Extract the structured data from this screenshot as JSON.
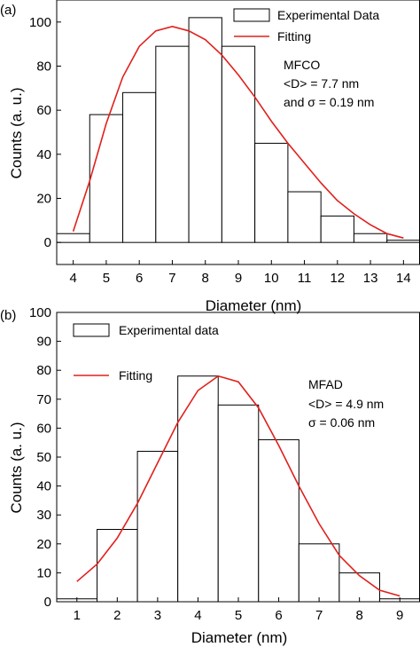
{
  "chart_data": [
    {
      "type": "bar",
      "panel_label": "(a)",
      "xlabel": "Diameter (nm)",
      "ylabel": "Counts (a. u.)",
      "xlim": [
        3.5,
        14.5
      ],
      "ylim": [
        -10,
        110
      ],
      "xticks": [
        4,
        5,
        6,
        7,
        8,
        9,
        10,
        11,
        12,
        13,
        14
      ],
      "yticks": [
        0,
        20,
        40,
        60,
        80,
        100
      ],
      "bin_width": 1,
      "bin_centers": [
        4,
        5,
        6,
        7,
        8,
        9,
        10,
        11,
        12,
        13,
        14
      ],
      "values": [
        4,
        58,
        68,
        89,
        102,
        89,
        45,
        23,
        12,
        4,
        1
      ],
      "fit": {
        "kind": "lognormal",
        "x": [
          4.0,
          4.5,
          5.0,
          5.5,
          6.0,
          6.5,
          7.0,
          7.5,
          8.0,
          8.5,
          9.0,
          9.5,
          10.0,
          10.5,
          11.0,
          11.5,
          12.0,
          12.5,
          13.0,
          13.5,
          14.0
        ],
        "y": [
          5,
          28,
          54,
          75,
          89,
          96,
          98,
          96,
          92,
          85,
          76,
          66,
          55,
          45,
          36,
          27,
          19,
          13,
          8,
          4,
          2
        ]
      },
      "legend": {
        "position": "top-right",
        "bar": "Experimental Data",
        "line": "Fitting"
      },
      "annotation": [
        "MFCO",
        "<D> = 7.7 nm",
        "and σ = 0.19 nm"
      ],
      "colors": {
        "fit": "#e0201c",
        "bar_edge": "#000000",
        "bar_fill": "#ffffff"
      }
    },
    {
      "type": "bar",
      "panel_label": "(b)",
      "xlabel": "Diameter (nm)",
      "ylabel": "Counts (a. u.)",
      "xlim": [
        0.5,
        9.5
      ],
      "ylim": [
        0,
        100
      ],
      "xticks": [
        1,
        2,
        3,
        4,
        5,
        6,
        7,
        8,
        9
      ],
      "yticks": [
        0,
        10,
        20,
        30,
        40,
        50,
        60,
        70,
        80,
        90,
        100
      ],
      "bin_width": 1,
      "bin_centers": [
        1,
        2,
        3,
        4,
        5,
        6,
        7,
        8,
        9
      ],
      "values": [
        1,
        25,
        52,
        78,
        68,
        56,
        20,
        10,
        1
      ],
      "fit": {
        "kind": "gaussian",
        "x": [
          1.0,
          1.5,
          2.0,
          2.5,
          3.0,
          3.5,
          4.0,
          4.5,
          5.0,
          5.5,
          6.0,
          6.5,
          7.0,
          7.5,
          8.0,
          8.5,
          9.0
        ],
        "y": [
          7,
          13,
          22,
          34,
          48,
          62,
          73,
          78,
          76,
          67,
          54,
          40,
          27,
          16,
          9,
          4,
          2
        ]
      },
      "legend": {
        "position": "top-left",
        "bar": "Experimental data",
        "line": "Fitting"
      },
      "annotation": [
        "MFAD",
        "<D> = 4.9 nm",
        "σ = 0.06 nm"
      ],
      "colors": {
        "fit": "#e0201c",
        "bar_edge": "#000000",
        "bar_fill": "#ffffff"
      }
    }
  ]
}
